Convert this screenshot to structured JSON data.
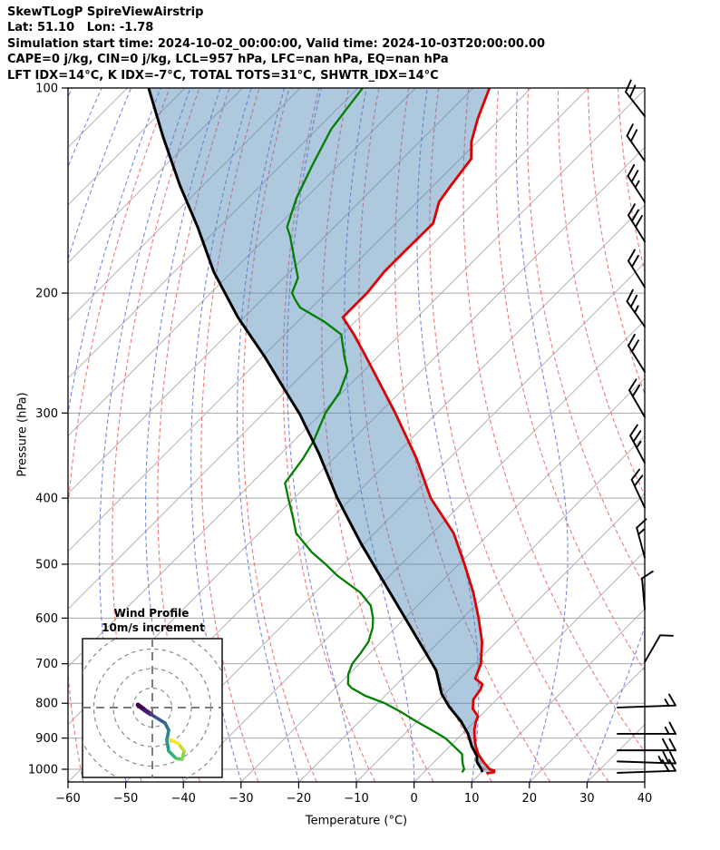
{
  "header": {
    "lines": [
      "SkewTLogP SpireViewAirstrip",
      "Lat: 51.10   Lon: -1.78",
      "Simulation start time: 2024-10-02_00:00:00, Valid time: 2024-10-03T20:00:00.00",
      "CAPE=0 j/kg, CIN=0 j/kg, LCL=957 hPa, LFC=nan hPa, EQ=nan hPa",
      "LFT IDX=14°C, K IDX=-7°C, TOTAL TOTS=31°C, SHWTR_IDX=14°C"
    ]
  },
  "chart_data": {
    "type": "skewt-logp",
    "title": "SkewTLogP SpireViewAirstrip",
    "skew_deg": 45,
    "grid": true,
    "pressure_axis": {
      "label": "Pressure (hPa)",
      "scale": "log",
      "range": [
        100,
        1043
      ],
      "ticks": [
        {
          "value": 100,
          "label": "100"
        },
        {
          "value": 200,
          "label": "200"
        },
        {
          "value": 300,
          "label": "300"
        },
        {
          "value": 400,
          "label": "400"
        },
        {
          "value": 500,
          "label": "500"
        },
        {
          "value": 600,
          "label": "600"
        },
        {
          "value": 700,
          "label": "700"
        },
        {
          "value": 800,
          "label": "800"
        },
        {
          "value": 900,
          "label": "900"
        },
        {
          "value": 1000,
          "label": "1000"
        }
      ]
    },
    "temperature_axis": {
      "label": "Temperature (°C)",
      "range": [
        -60,
        40
      ],
      "ticks": [
        {
          "value": -60,
          "label": "−60"
        },
        {
          "value": -50,
          "label": "−50"
        },
        {
          "value": -40,
          "label": "−40"
        },
        {
          "value": -30,
          "label": "−30"
        },
        {
          "value": -20,
          "label": "−20"
        },
        {
          "value": -10,
          "label": "−10"
        },
        {
          "value": 0,
          "label": "0"
        },
        {
          "value": 10,
          "label": "10"
        },
        {
          "value": 20,
          "label": "20"
        },
        {
          "value": 30,
          "label": "30"
        },
        {
          "value": 40,
          "label": "40"
        }
      ]
    },
    "background": {
      "isotherm_color": "#b3b3b3",
      "isobar_color": "#a6a6a6",
      "dry_adiabat_color": "#ee6a6a",
      "moist_adiabat_color": "#6b7bdf",
      "isotherm_range_c": [
        -180,
        40
      ],
      "isotherm_step_c": 10,
      "dry_adiabat_theta_range_c": [
        -60,
        160
      ],
      "dry_adiabat_step_c": 10,
      "moist_adiabat_start_range_c": [
        -90,
        40
      ],
      "moist_adiabat_step_c": 10
    },
    "shade": {
      "between": [
        "parcel",
        "temperature"
      ],
      "color": "#4682b4",
      "opacity": 0.44
    },
    "series": [
      {
        "name": "temperature",
        "color": "#e00000",
        "width": 2.8,
        "points": [
          [
            1013,
            11.2
          ],
          [
            1010,
            12.2
          ],
          [
            1004,
            11.9
          ],
          [
            1000,
            10.9
          ],
          [
            975,
            8.5
          ],
          [
            950,
            6.3
          ],
          [
            925,
            4.5
          ],
          [
            900,
            2.9
          ],
          [
            875,
            1.4
          ],
          [
            850,
            0.2
          ],
          [
            836,
            -0.3
          ],
          [
            815,
            -2.5
          ],
          [
            800,
            -3.4
          ],
          [
            790,
            -4.0
          ],
          [
            764,
            -4.5
          ],
          [
            750,
            -5.1
          ],
          [
            736,
            -7.3
          ],
          [
            700,
            -8.9
          ],
          [
            650,
            -12.5
          ],
          [
            600,
            -17.2
          ],
          [
            550,
            -22.6
          ],
          [
            500,
            -29.0
          ],
          [
            450,
            -36.3
          ],
          [
            400,
            -46.3
          ],
          [
            350,
            -55.6
          ],
          [
            300,
            -67.2
          ],
          [
            250,
            -81.4
          ],
          [
            230,
            -88.0
          ],
          [
            217,
            -92.9
          ],
          [
            200,
            -92.9
          ],
          [
            186,
            -93.6
          ],
          [
            173,
            -93.6
          ],
          [
            158,
            -93.5
          ],
          [
            147,
            -96.2
          ],
          [
            139,
            -97.0
          ],
          [
            127,
            -98.1
          ],
          [
            120,
            -101.0
          ],
          [
            111,
            -103.9
          ],
          [
            100,
            -107.2
          ]
        ]
      },
      {
        "name": "dewpoint",
        "color": "#008000",
        "width": 2.3,
        "points": [
          [
            1008,
            6.6
          ],
          [
            1000,
            6.5
          ],
          [
            985,
            5.5
          ],
          [
            970,
            4.6
          ],
          [
            950,
            3.5
          ],
          [
            925,
            0.7
          ],
          [
            900,
            -2.2
          ],
          [
            875,
            -6.1
          ],
          [
            850,
            -10.2
          ],
          [
            825,
            -14.2
          ],
          [
            800,
            -18.7
          ],
          [
            780,
            -23.4
          ],
          [
            760,
            -27.1
          ],
          [
            750,
            -28.4
          ],
          [
            725,
            -30.1
          ],
          [
            700,
            -31.2
          ],
          [
            675,
            -31.6
          ],
          [
            650,
            -32.2
          ],
          [
            620,
            -33.9
          ],
          [
            600,
            -35.5
          ],
          [
            575,
            -38.1
          ],
          [
            550,
            -42.2
          ],
          [
            520,
            -49.0
          ],
          [
            500,
            -53.1
          ],
          [
            480,
            -57.6
          ],
          [
            450,
            -63.6
          ],
          [
            430,
            -66.4
          ],
          [
            400,
            -71.0
          ],
          [
            380,
            -74.2
          ],
          [
            350,
            -75.3
          ],
          [
            330,
            -76.5
          ],
          [
            300,
            -79.3
          ],
          [
            280,
            -80.4
          ],
          [
            260,
            -82.8
          ],
          [
            250,
            -85.3
          ],
          [
            230,
            -90.2
          ],
          [
            220,
            -95.5
          ],
          [
            210,
            -102.0
          ],
          [
            205,
            -104.0
          ],
          [
            200,
            -105.9
          ],
          [
            190,
            -107.5
          ],
          [
            180,
            -110.8
          ],
          [
            165,
            -116.1
          ],
          [
            160,
            -118.2
          ],
          [
            145,
            -121.6
          ],
          [
            130,
            -124.5
          ],
          [
            115,
            -127.5
          ],
          [
            100,
            -129.2
          ]
        ]
      },
      {
        "name": "parcel",
        "color": "#000000",
        "width": 3.0,
        "points": [
          [
            1006,
            9.9
          ],
          [
            1000,
            9.5
          ],
          [
            975,
            7.4
          ],
          [
            956,
            6.4
          ],
          [
            925,
            3.8
          ],
          [
            887,
            1.0
          ],
          [
            850,
            -2.4
          ],
          [
            809,
            -7.0
          ],
          [
            775,
            -10.5
          ],
          [
            716,
            -15.5
          ],
          [
            635,
            -25.3
          ],
          [
            545,
            -37.8
          ],
          [
            467,
            -50.4
          ],
          [
            400,
            -62.5
          ],
          [
            344,
            -73.4
          ],
          [
            301,
            -83.6
          ],
          [
            278,
            -90.2
          ],
          [
            248,
            -99.6
          ],
          [
            217,
            -111.1
          ],
          [
            186,
            -123.2
          ],
          [
            160,
            -133.7
          ],
          [
            139,
            -144.0
          ],
          [
            118,
            -155.3
          ],
          [
            100,
            -166.3
          ]
        ]
      }
    ],
    "wind_barbs": [
      {
        "p": 110,
        "dir": -38,
        "full": 2,
        "half": 0
      },
      {
        "p": 128,
        "dir": -35,
        "full": 2,
        "half": 0
      },
      {
        "p": 147,
        "dir": -33,
        "full": 2,
        "half": 1
      },
      {
        "p": 168,
        "dir": -32,
        "full": 3,
        "half": 0
      },
      {
        "p": 196,
        "dir": -32,
        "full": 2,
        "half": 0
      },
      {
        "p": 224,
        "dir": -35,
        "full": 2,
        "half": 1
      },
      {
        "p": 261,
        "dir": -32,
        "full": 2,
        "half": 0
      },
      {
        "p": 304,
        "dir": -30,
        "full": 2,
        "half": 0
      },
      {
        "p": 355,
        "dir": -28,
        "full": 2,
        "half": 1
      },
      {
        "p": 413,
        "dir": -25,
        "full": 2,
        "half": 0
      },
      {
        "p": 489,
        "dir": -15,
        "full": 1,
        "half": 1
      },
      {
        "p": 582,
        "dir": -5,
        "full": 1,
        "half": 0
      },
      {
        "p": 696,
        "dir": 30,
        "full": 1,
        "half": 0
      },
      {
        "p": 809,
        "dir": 88,
        "full": 1,
        "half": 1,
        "back": 30
      },
      {
        "p": 887,
        "dir": 90,
        "full": 1,
        "half": 1,
        "back": 30
      },
      {
        "p": 938,
        "dir": 90,
        "full": 2,
        "half": 0,
        "back": 30
      },
      {
        "p": 977,
        "dir": 92,
        "full": 2,
        "half": 1,
        "back": 30
      },
      {
        "p": 1009,
        "dir": 88,
        "full": 2,
        "half": 0,
        "back": 30
      }
    ],
    "hodograph": {
      "title": "Wind Profile",
      "subtitle": "10m/s increment",
      "ring_increment_mps": 10,
      "rings": 4,
      "colormap": [
        "#440154",
        "#414487",
        "#2a788e",
        "#22a884",
        "#7ad151",
        "#fde725"
      ],
      "trace_uv": [
        [
          -7.4,
          1.4
        ],
        [
          -3.7,
          -1.4
        ],
        [
          -0.9,
          -3.3
        ],
        [
          1.9,
          -5.1
        ],
        [
          6.5,
          -7.9
        ],
        [
          8.4,
          -11.6
        ],
        [
          7.4,
          -16.7
        ],
        [
          8.4,
          -22.3
        ],
        [
          12.1,
          -26.0
        ],
        [
          15.3,
          -26.5
        ],
        [
          16.3,
          -22.3
        ],
        [
          13.5,
          -18.6
        ],
        [
          9.3,
          -16.3
        ]
      ]
    }
  }
}
